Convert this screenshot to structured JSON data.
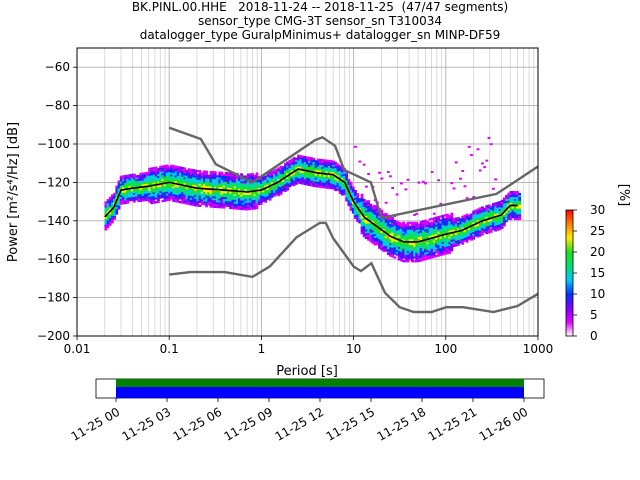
{
  "title_lines": [
    "BK.PINL.00.HHE   2018-11-24 -- 2018-11-25  (47/47 segments)",
    "sensor_type CMG-3T sensor_sn T310034",
    "datalogger_type GuralpMinimus+ datalogger_sn MINP-DF59"
  ],
  "chart_data": {
    "type": "heatmap",
    "xlabel": "Period [s]",
    "ylabel": "Power [m²/s⁴/Hz] [dB]",
    "xscale": "log",
    "xlim": [
      0.01,
      1000
    ],
    "ylim": [
      -200,
      -50
    ],
    "xticks": [
      "0.01",
      "0.1",
      "1",
      "10",
      "100",
      "1000"
    ],
    "yticks": [
      "−60",
      "−80",
      "−100",
      "−120",
      "−140",
      "−160",
      "−180",
      "−200"
    ],
    "ytick_values": [
      -60,
      -80,
      -100,
      -120,
      -140,
      -160,
      -180,
      -200
    ],
    "grid": true,
    "colorbar": {
      "label": "[%]",
      "ticks": [
        "0",
        "5",
        "10",
        "15",
        "20",
        "25",
        "30"
      ],
      "range": [
        0,
        30
      ],
      "colors": [
        "#ffffff",
        "#e000ff",
        "#7f00ff",
        "#0033ff",
        "#00c8ff",
        "#00e070",
        "#20e020",
        "#ffee00",
        "#ff8000",
        "#ff0000"
      ]
    },
    "noise_model_color": "#666666",
    "mean_color": "#000000",
    "high_noise_model": {
      "x": [
        0.1,
        0.22,
        0.32,
        0.8,
        3.8,
        4.6,
        6.3,
        7.9,
        15.4,
        20,
        354.8,
        10000
      ],
      "y": [
        -91.5,
        -97.4,
        -110.5,
        -120,
        -98,
        -96.5,
        -101,
        -113.5,
        -120,
        -138.5,
        -126,
        -80
      ]
    },
    "low_noise_model": {
      "x": [
        0.1,
        0.17,
        0.4,
        0.8,
        1.24,
        2.4,
        4.3,
        5,
        6,
        10,
        12,
        15.6,
        21.9,
        31.6,
        45,
        70,
        101,
        154,
        328,
        600,
        1000
      ],
      "y": [
        -168,
        -166.7,
        -166.7,
        -169.2,
        -163.7,
        -148.6,
        -141.1,
        -141.1,
        -149,
        -163.8,
        -166.2,
        -162.1,
        -177.5,
        -185,
        -187.5,
        -187.5,
        -185,
        -185,
        -187.5,
        -184.4,
        -178
      ]
    },
    "mean_curve": {
      "x": [
        0.02,
        0.025,
        0.03,
        0.04,
        0.06,
        0.1,
        0.2,
        0.4,
        0.7,
        1.0,
        1.5,
        2.5,
        4,
        6,
        8,
        10,
        13,
        18,
        25,
        35,
        50,
        70,
        100,
        150,
        250,
        400,
        500,
        600
      ],
      "y": [
        -138,
        -133,
        -124,
        -123,
        -122,
        -120,
        -123,
        -124,
        -125,
        -124,
        -120,
        -113,
        -115,
        -116,
        -120,
        -130,
        -138,
        -143,
        -148,
        -151,
        -151,
        -149,
        -147,
        -145,
        -140,
        -137,
        -132,
        -132
      ]
    },
    "time_axis": {
      "ticks": [
        "11-25 00",
        "11-25 03",
        "11-25 06",
        "11-25 09",
        "11-25 12",
        "11-25 15",
        "11-25 18",
        "11-25 21",
        "11-26 00"
      ],
      "coverage_colors": [
        "#008000",
        "#0000ff"
      ]
    }
  }
}
